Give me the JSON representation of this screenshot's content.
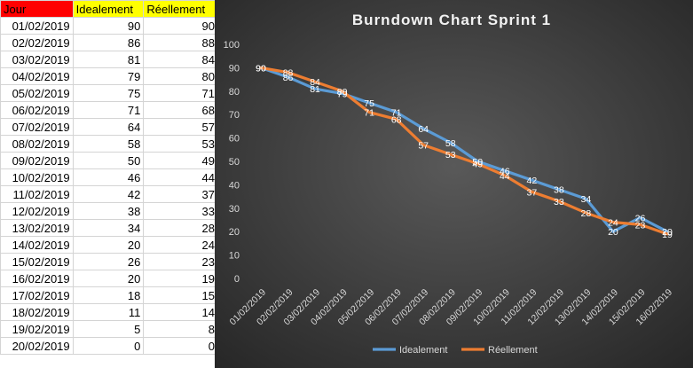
{
  "sheet": {
    "headers": [
      "Jour",
      "Idealement",
      "Réellement"
    ],
    "rows": [
      {
        "day": "01/02/2019",
        "ideal": "90",
        "real": "90"
      },
      {
        "day": "02/02/2019",
        "ideal": "86",
        "real": "88"
      },
      {
        "day": "03/02/2019",
        "ideal": "81",
        "real": "84"
      },
      {
        "day": "04/02/2019",
        "ideal": "79",
        "real": "80"
      },
      {
        "day": "05/02/2019",
        "ideal": "75",
        "real": "71"
      },
      {
        "day": "06/02/2019",
        "ideal": "71",
        "real": "68"
      },
      {
        "day": "07/02/2019",
        "ideal": "64",
        "real": "57"
      },
      {
        "day": "08/02/2019",
        "ideal": "58",
        "real": "53"
      },
      {
        "day": "09/02/2019",
        "ideal": "50",
        "real": "49"
      },
      {
        "day": "10/02/2019",
        "ideal": "46",
        "real": "44"
      },
      {
        "day": "11/02/2019",
        "ideal": "42",
        "real": "37"
      },
      {
        "day": "12/02/2019",
        "ideal": "38",
        "real": "33"
      },
      {
        "day": "13/02/2019",
        "ideal": "34",
        "real": "28"
      },
      {
        "day": "14/02/2019",
        "ideal": "20",
        "real": "24"
      },
      {
        "day": "15/02/2019",
        "ideal": "26",
        "real": "23"
      },
      {
        "day": "16/02/2019",
        "ideal": "20",
        "real": "19"
      },
      {
        "day": "17/02/2019",
        "ideal": "18",
        "real": "15"
      },
      {
        "day": "18/02/2019",
        "ideal": "11",
        "real": "14"
      },
      {
        "day": "19/02/2019",
        "ideal": "5",
        "real": "8"
      },
      {
        "day": "20/02/2019",
        "ideal": "0",
        "real": "0"
      }
    ]
  },
  "chart_data": {
    "type": "line",
    "title": "Burndown Chart Sprint 1",
    "categories": [
      "01/02/2019",
      "02/02/2019",
      "03/02/2019",
      "04/02/2019",
      "05/02/2019",
      "06/02/2019",
      "07/02/2019",
      "08/02/2019",
      "09/02/2019",
      "10/02/2019",
      "11/02/2019",
      "12/02/2019",
      "13/02/2019",
      "14/02/2019",
      "15/02/2019",
      "16/02/2019"
    ],
    "series": [
      {
        "name": "Idealement",
        "color": "#5b9bd5",
        "values": [
          90,
          86,
          81,
          79,
          75,
          71,
          64,
          58,
          50,
          46,
          42,
          38,
          34,
          20,
          26,
          20
        ]
      },
      {
        "name": "Réellement",
        "color": "#ed7d31",
        "values": [
          90,
          88,
          84,
          80,
          71,
          68,
          57,
          53,
          49,
          44,
          37,
          33,
          28,
          24,
          23,
          19
        ]
      }
    ],
    "yticks": [
      "0",
      "10",
      "20",
      "30",
      "40",
      "50",
      "60",
      "70",
      "80",
      "90",
      "100"
    ],
    "ylim": [
      0,
      100
    ],
    "grid": false,
    "legend_position": "bottom",
    "background": "#404040"
  }
}
